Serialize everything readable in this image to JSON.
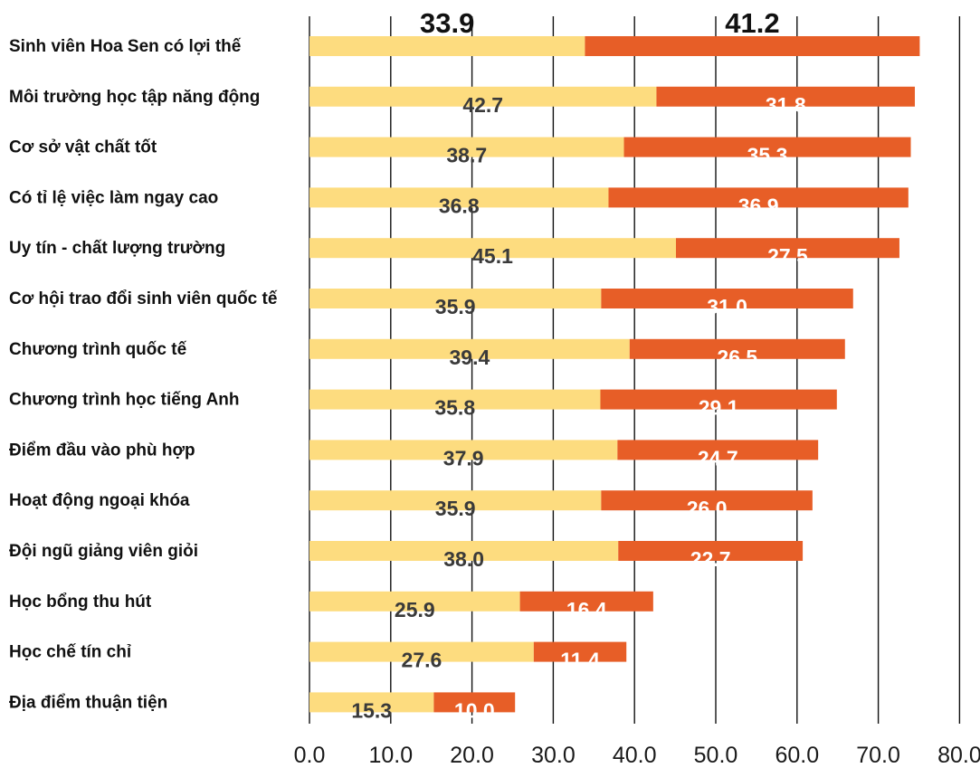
{
  "chart_data": {
    "type": "bar",
    "orientation": "horizontal",
    "stacked": true,
    "categories": [
      "Sinh viên Hoa Sen có lợi thế",
      "Môi trường học tập năng động",
      "Cơ sở vật chất tốt",
      "Có tỉ lệ việc làm ngay cao",
      "Uy tín - chất lượng trường",
      "Cơ hội trao đổi sinh viên quốc tế",
      "Chương trình quốc tế",
      "Chương trình học tiếng Anh",
      "Điểm đầu vào phù hợp",
      "Hoạt động ngoại khóa",
      "Đội ngũ giảng viên giỏi",
      "Học bổng thu hút",
      "Học chế tín chỉ",
      "Địa điểm thuận tiện"
    ],
    "series": [
      {
        "values": [
          33.9,
          42.7,
          38.7,
          36.8,
          45.1,
          35.9,
          39.4,
          35.8,
          37.9,
          35.9,
          38.0,
          25.9,
          27.6,
          15.3
        ],
        "labels": [
          "33.9",
          "42.7",
          "38.7",
          "36.8",
          "45.1",
          "35.9",
          "39.4",
          "35.8",
          "37.9",
          "35.9",
          "38.0",
          "25.9",
          "27.6",
          "15.3"
        ],
        "color": "#FDDC7F",
        "label_color": "#3A3A3A"
      },
      {
        "values": [
          41.2,
          31.8,
          35.3,
          36.9,
          27.5,
          31.0,
          26.5,
          29.1,
          24.7,
          26.0,
          22.7,
          16.4,
          11.4,
          10.0
        ],
        "labels": [
          "41.2",
          "31.8",
          "35.3",
          "36.9",
          "27.5",
          "31.0",
          "26.5",
          "29.1",
          "24.7",
          "26.0",
          "22.7",
          "16.4",
          "11.4",
          "10.0"
        ],
        "color": "#E75E27",
        "label_color": "#FFFFFF"
      }
    ],
    "xlim": [
      0,
      80
    ],
    "xticks": [
      "0.0",
      "10.0",
      "20.0",
      "30.0",
      "40.0",
      "50.0",
      "60.0",
      "70.0",
      "80.0"
    ],
    "grid": true,
    "legend": false
  }
}
